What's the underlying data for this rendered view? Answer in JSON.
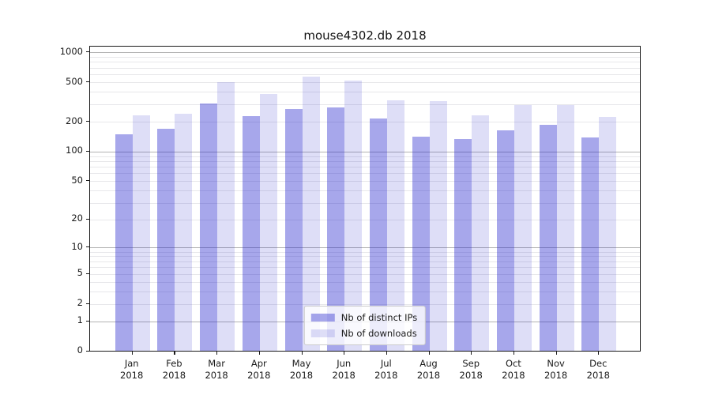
{
  "chart_data": {
    "type": "bar",
    "title": "mouse4302.db 2018",
    "xlabel": "",
    "ylabel": "",
    "yscale": "log1p",
    "ylim": [
      0,
      1000
    ],
    "grid": true,
    "legend_position": "lower center",
    "categories": [
      "Jan 2018",
      "Feb 2018",
      "Mar 2018",
      "Apr 2018",
      "May 2018",
      "Jun 2018",
      "Jul 2018",
      "Aug 2018",
      "Sep 2018",
      "Oct 2018",
      "Nov 2018",
      "Dec 2018"
    ],
    "series": [
      {
        "name": "Nb of distinct IPs",
        "color": "rgba(34,34,204,0.40)",
        "values": [
          143,
          165,
          295,
          218,
          260,
          270,
          209,
          136,
          128,
          157,
          180,
          134
        ]
      },
      {
        "name": "Nb of downloads",
        "color": "rgba(34,34,204,0.15)",
        "values": [
          224,
          230,
          480,
          365,
          550,
          500,
          317,
          311,
          224,
          286,
          286,
          215
        ]
      }
    ],
    "yticks": {
      "values": [
        0,
        1,
        2,
        5,
        10,
        20,
        50,
        100,
        200,
        500,
        1000
      ],
      "labels": [
        "0",
        "1",
        "2",
        "5",
        "10",
        "20",
        "50",
        "100",
        "200",
        "500",
        "1000"
      ],
      "major_gridlines": [
        1,
        10,
        100,
        1000
      ],
      "minor_gridlines": [
        2,
        3,
        4,
        5,
        6,
        7,
        8,
        9,
        20,
        30,
        40,
        50,
        60,
        70,
        80,
        90,
        200,
        300,
        400,
        500,
        600,
        700,
        800,
        900
      ]
    }
  }
}
